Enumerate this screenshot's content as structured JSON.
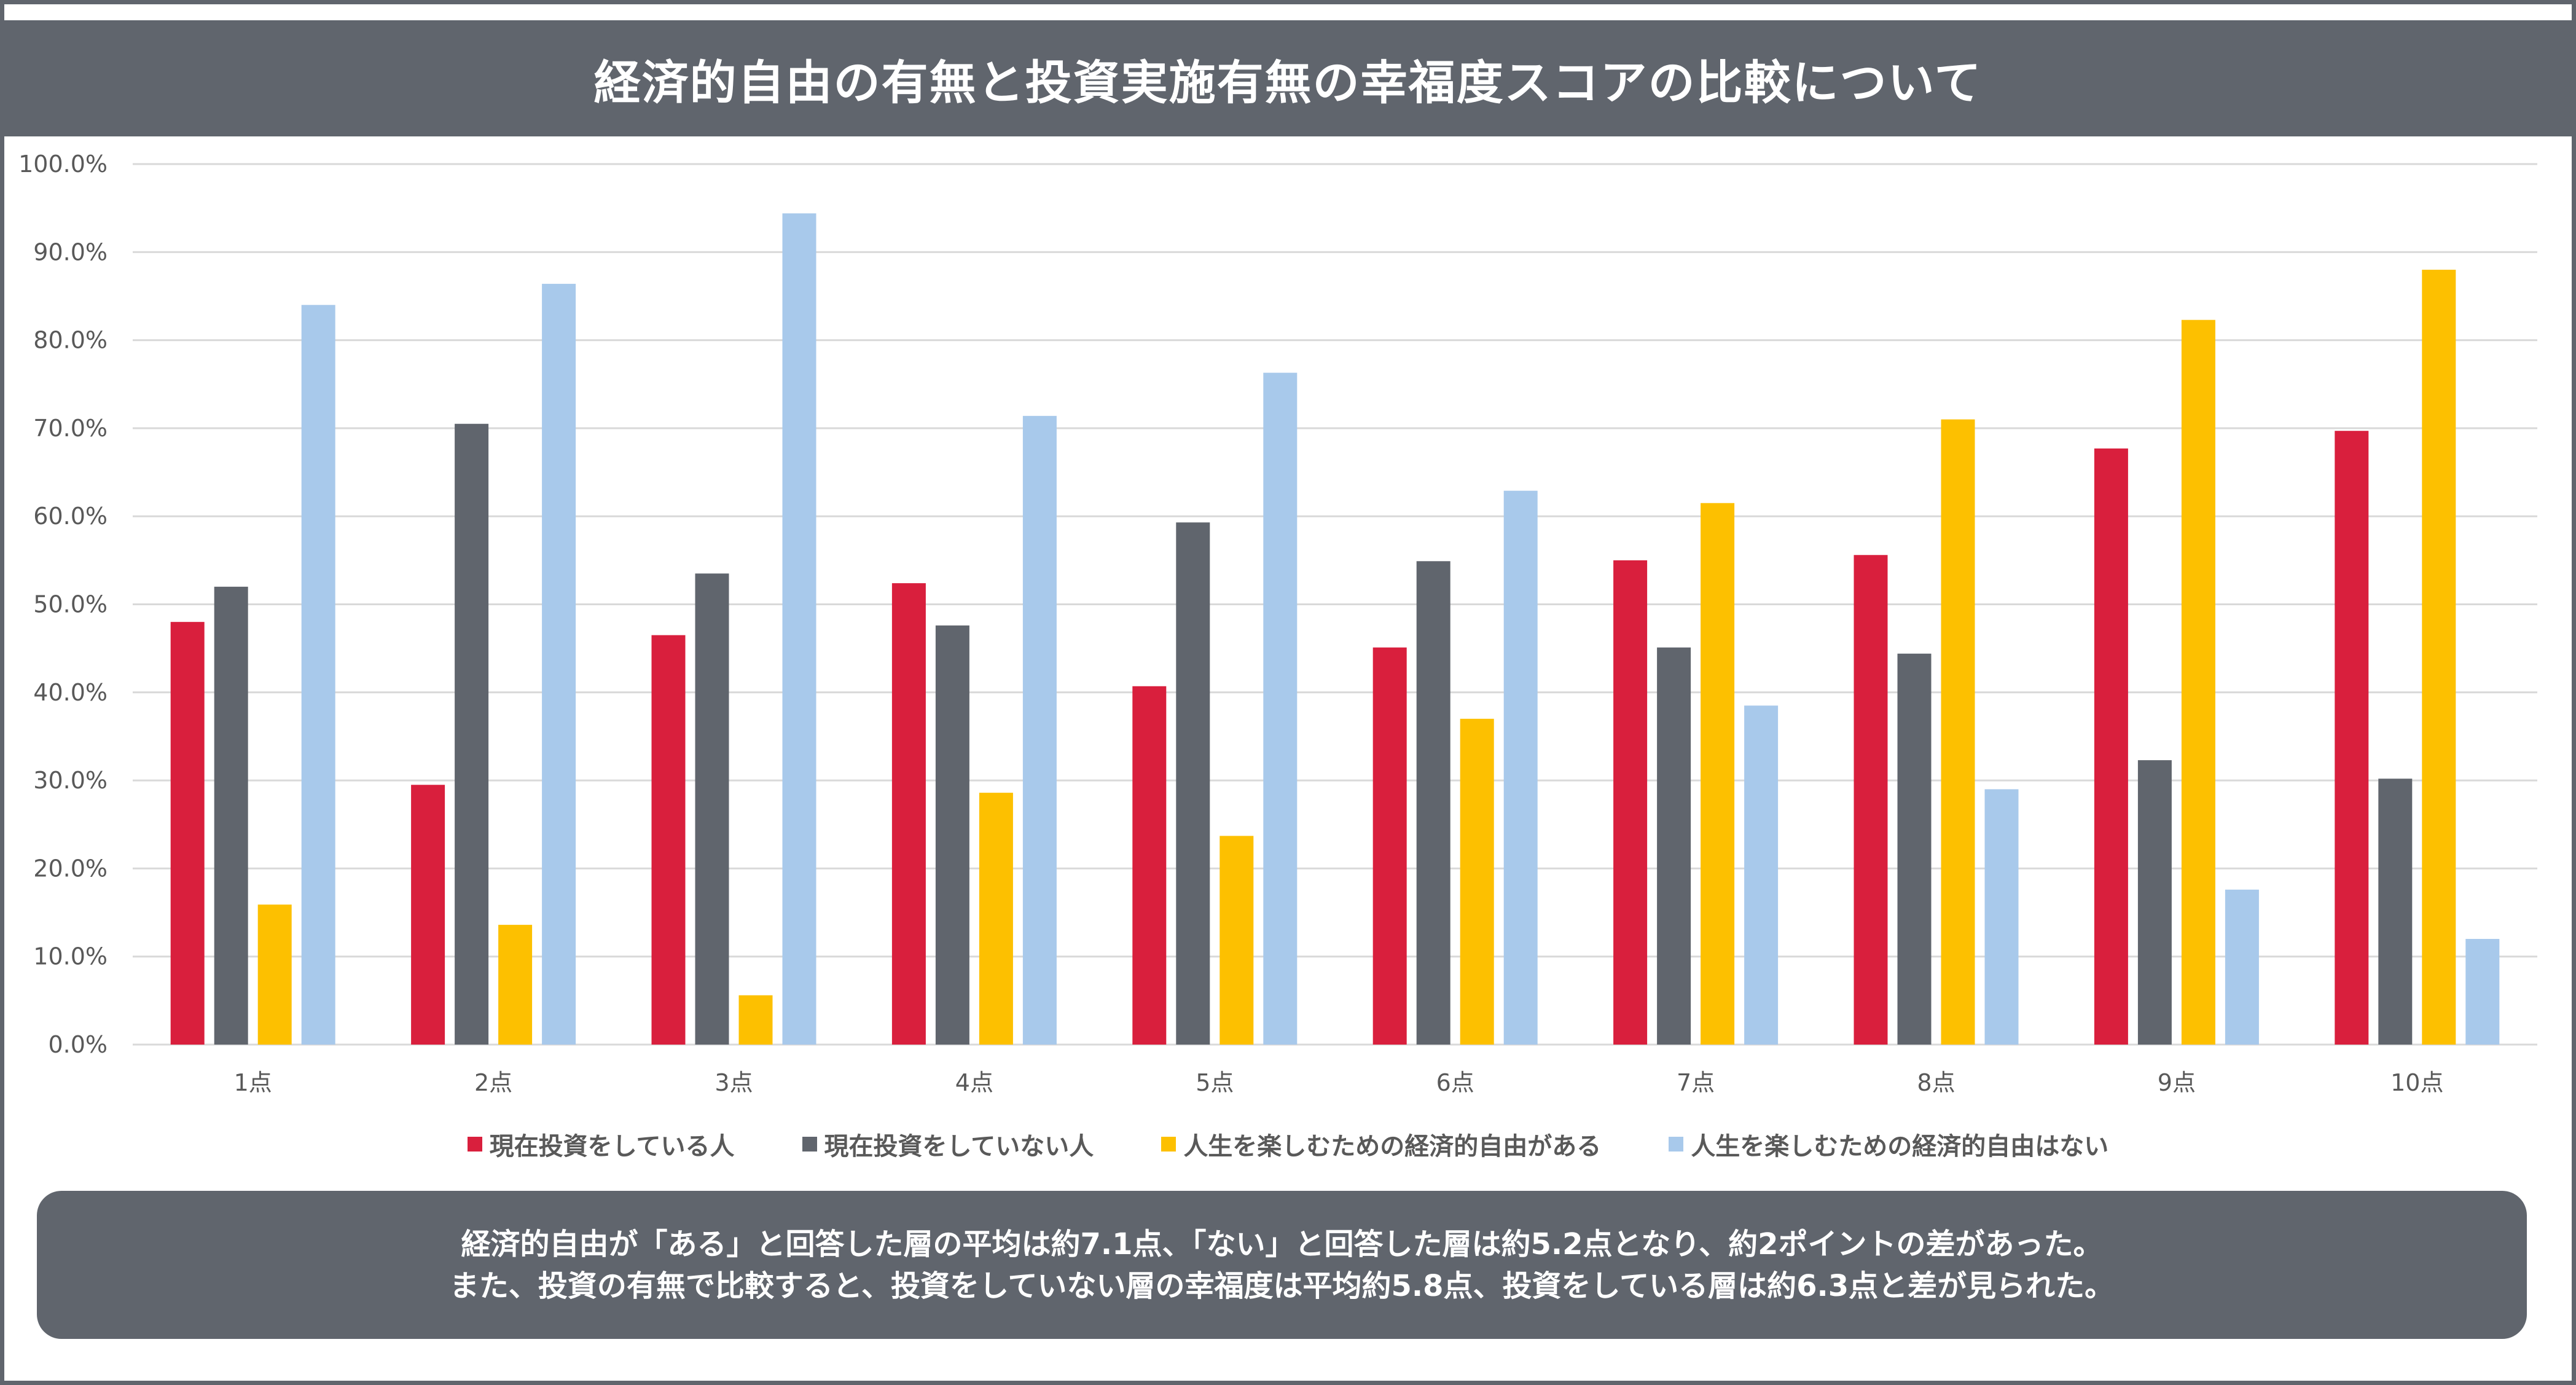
{
  "header": {
    "title": "経済的自由の有無と投資実施有無の幸福度スコアの比較について"
  },
  "colors": {
    "frame": "#60656d",
    "gridline": "#d9d9d9",
    "axis_text": "#595959"
  },
  "chart_data": {
    "type": "bar",
    "title": "経済的自由の有無と投資実施有無の幸福度スコアの比較について",
    "xlabel": "",
    "ylabel": "",
    "ylim": [
      0,
      100
    ],
    "y_ticks": [
      0,
      10,
      20,
      30,
      40,
      50,
      60,
      70,
      80,
      90,
      100
    ],
    "y_tick_labels": [
      "0.0%",
      "10.0%",
      "20.0%",
      "30.0%",
      "40.0%",
      "50.0%",
      "60.0%",
      "70.0%",
      "80.0%",
      "90.0%",
      "100.0%"
    ],
    "grid": true,
    "legend_position": "bottom",
    "categories": [
      "1点",
      "2点",
      "3点",
      "4点",
      "5点",
      "6点",
      "7点",
      "8点",
      "9点",
      "10点"
    ],
    "series": [
      {
        "name": "現在投資をしている人",
        "color": "#d91f3d",
        "values": [
          48.0,
          29.5,
          46.5,
          52.4,
          40.7,
          45.1,
          55.0,
          55.6,
          67.7,
          69.7
        ]
      },
      {
        "name": "現在投資をしていない人",
        "color": "#60656d",
        "values": [
          52.0,
          70.5,
          53.5,
          47.6,
          59.3,
          54.9,
          45.1,
          44.4,
          32.3,
          30.2
        ]
      },
      {
        "name": "人生を楽しむための経済的自由がある",
        "color": "#fdc000",
        "values": [
          15.9,
          13.6,
          5.6,
          28.6,
          23.7,
          37.0,
          61.5,
          71.0,
          82.3,
          88.0
        ]
      },
      {
        "name": "人生を楽しむための経済的自由はない",
        "color": "#a8c9eb",
        "values": [
          84.0,
          86.4,
          94.4,
          71.4,
          76.3,
          62.9,
          38.5,
          29.0,
          17.6,
          12.0
        ]
      }
    ]
  },
  "footer": {
    "lines": [
      "経済的自由が「ある」と回答した層の平均は約7.1点、「ない」と回答した層は約5.2点となり、約2ポイントの差があった。",
      "また、投資の有無で比較すると、投資をしていない層の幸福度は平均約5.8点、投資をしている層は約6.3点と差が見られた。"
    ]
  }
}
